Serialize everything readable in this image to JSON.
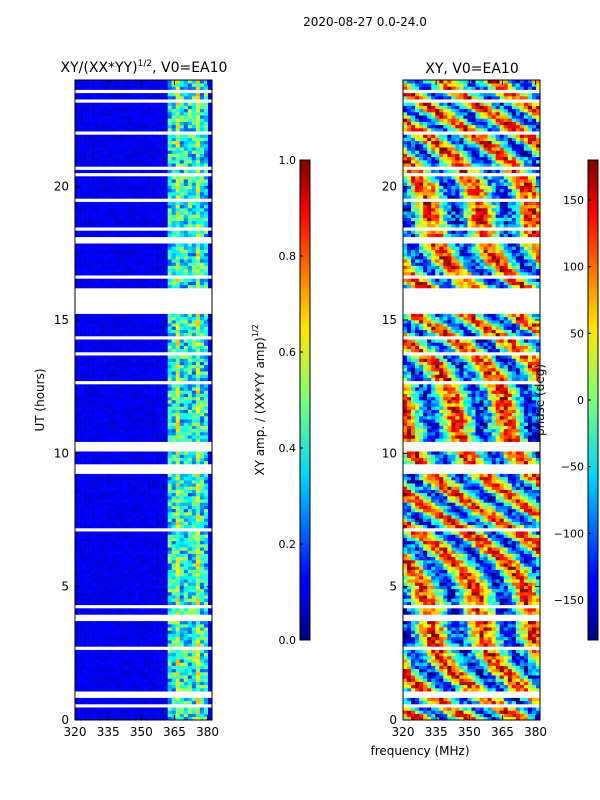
{
  "chart_data": [
    {
      "type": "heatmap",
      "suptitle": "2020-08-27 0.0-24.0",
      "title": "XY/(XX*YY)",
      "title_exp": "1/2",
      "title_suffix": ", V0=EA10",
      "xlabel": "",
      "ylabel": "UT (hours)",
      "xlim": [
        320,
        382
      ],
      "ylim": [
        0,
        24
      ],
      "xticks": [
        320,
        335,
        350,
        365,
        380
      ],
      "yticks": [
        0,
        5,
        10,
        15,
        20
      ],
      "colorbar": {
        "label": "XY amp. / (XX*YY amp)",
        "label_exp": "1/2",
        "range": [
          0.0,
          1.0
        ],
        "ticks": [
          "0.0",
          "0.2",
          "0.4",
          "0.6",
          "0.8",
          "1.0"
        ]
      },
      "gaps_hours": [
        [
          15.25,
          16.2
        ],
        [
          9.3,
          9.65
        ],
        [
          10.25,
          10.45
        ]
      ],
      "bright_band_mhz": [
        362,
        381
      ]
    },
    {
      "type": "heatmap",
      "title": "XY, V0=EA10",
      "xlabel": "frequency (MHz)",
      "ylabel": "",
      "xlim": [
        320,
        382
      ],
      "ylim": [
        0,
        24
      ],
      "xticks": [
        320,
        335,
        350,
        365,
        380
      ],
      "yticks": [
        0,
        5,
        10,
        15,
        20
      ],
      "colorbar": {
        "label": "phase (deg)",
        "range": [
          -180,
          180
        ],
        "ticks": [
          "−150",
          "−100",
          "−50",
          "0",
          "50",
          "100",
          "150"
        ]
      },
      "gaps_hours": [
        [
          15.25,
          16.2
        ],
        [
          9.3,
          9.65
        ],
        [
          10.25,
          10.45
        ]
      ]
    }
  ]
}
